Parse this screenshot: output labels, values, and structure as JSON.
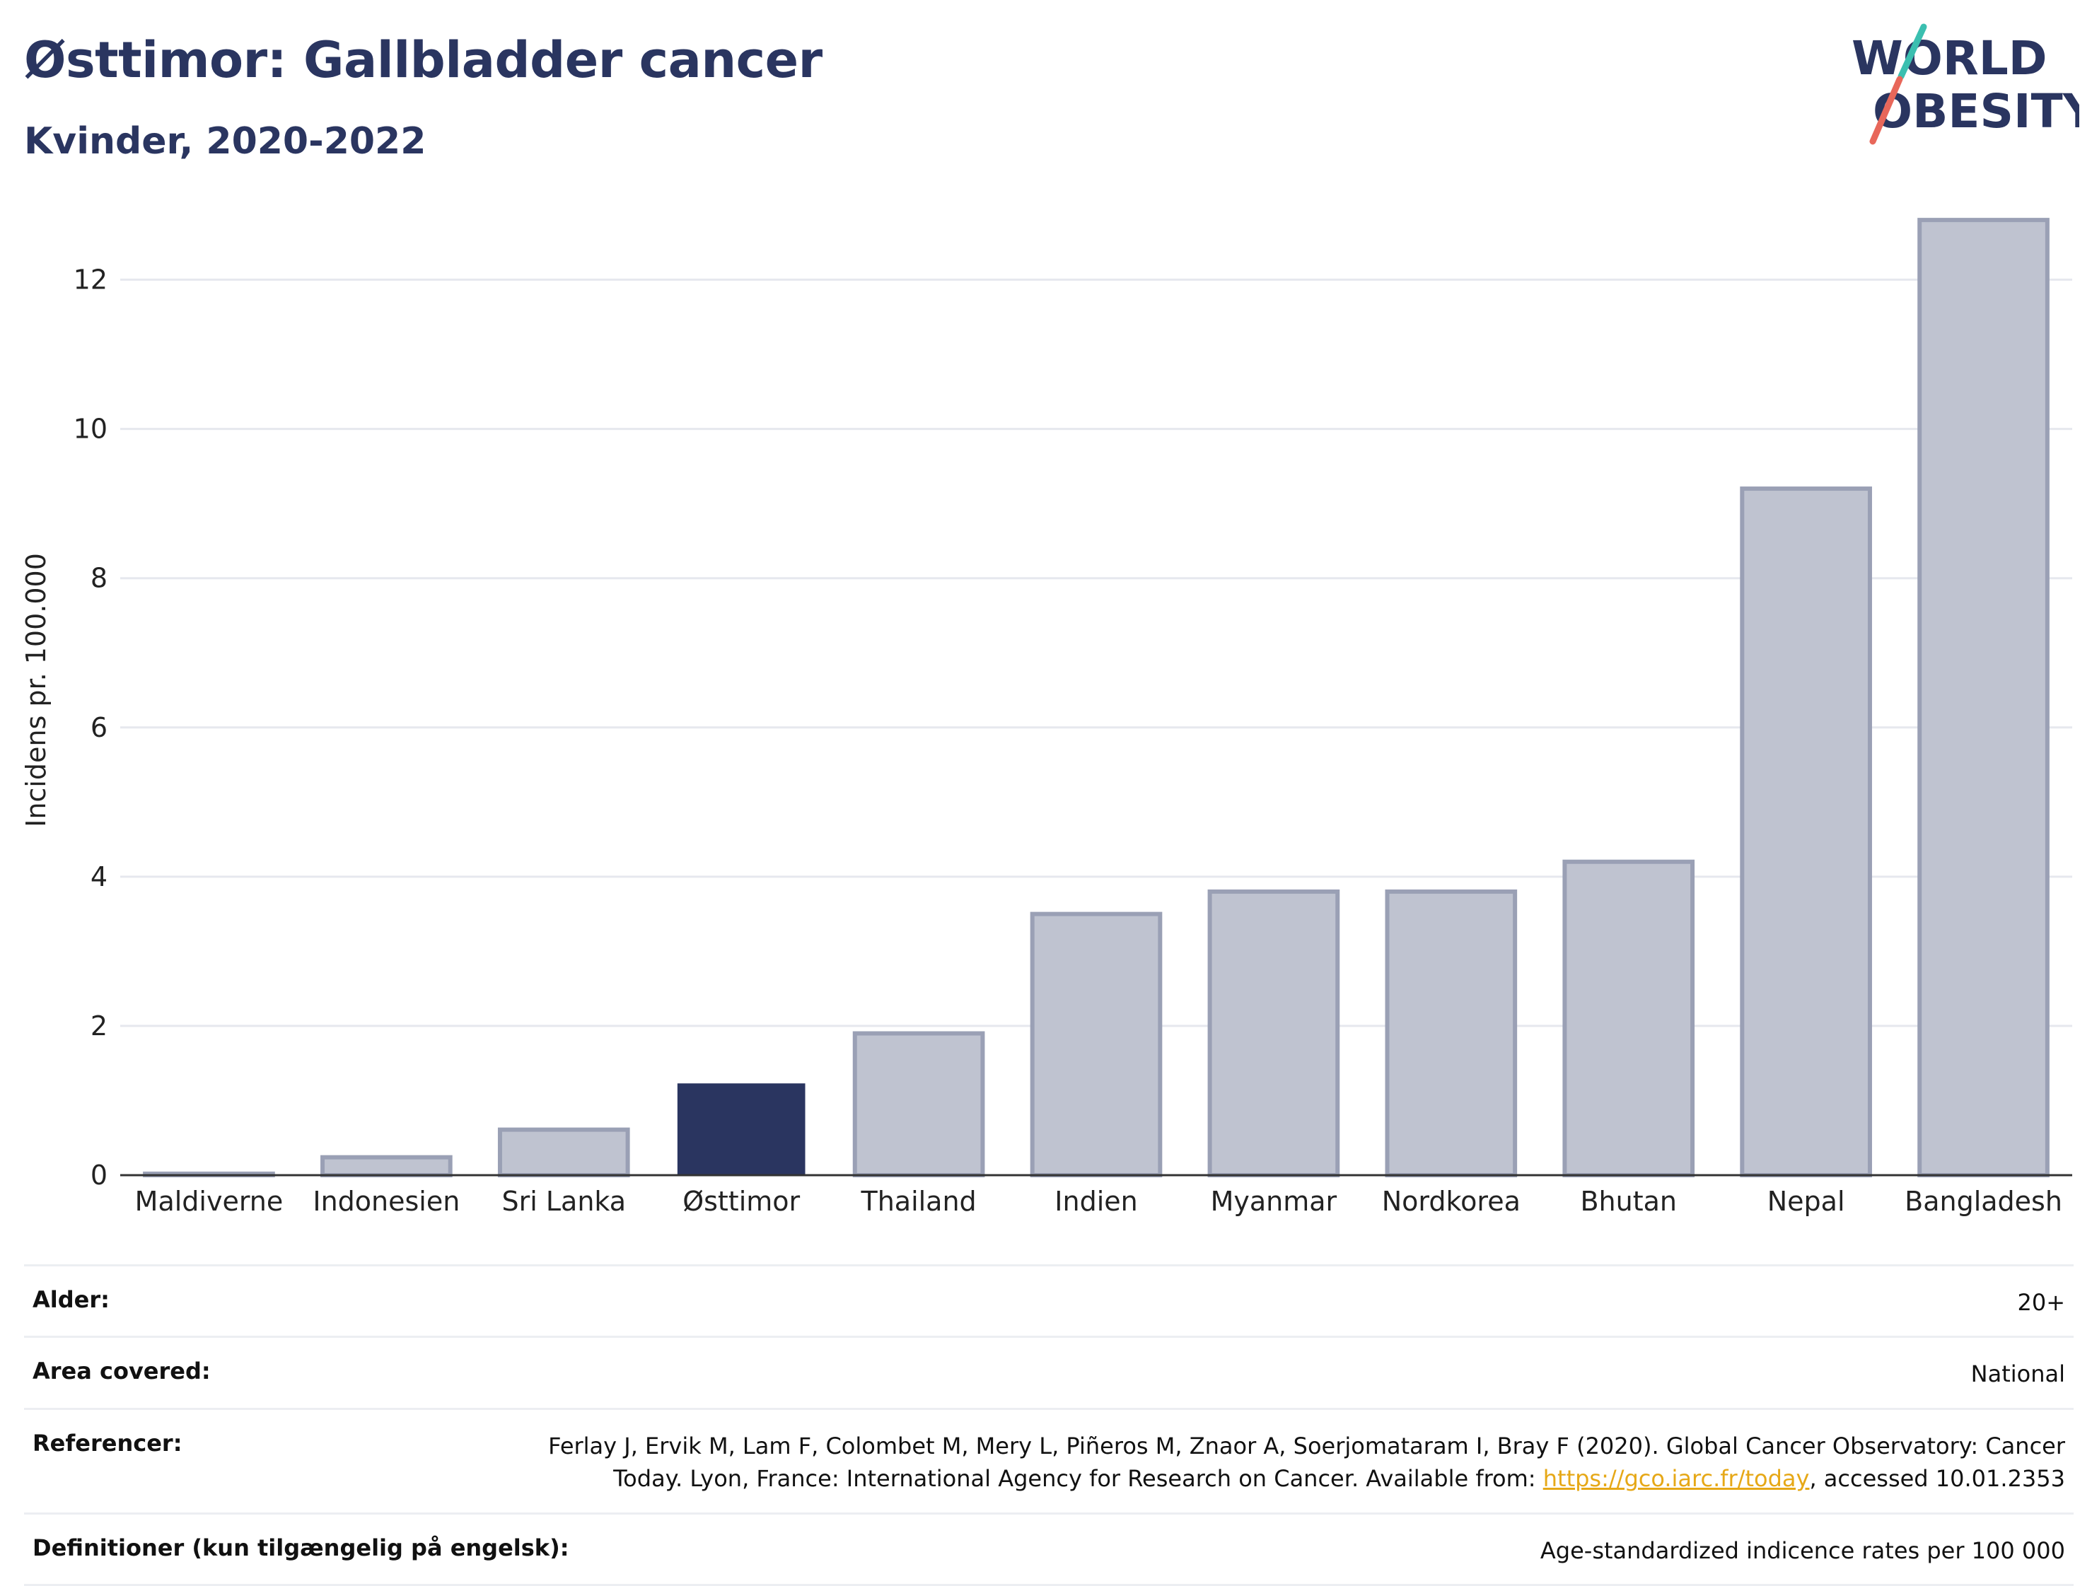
{
  "header": {
    "title": "Østtimor: Gallbladder cancer",
    "subtitle": "Kvinder, 2020-2022"
  },
  "logo": {
    "line1": "WORLD",
    "line2": "OBESITY",
    "colors": {
      "text": "#2a3560",
      "slash_teal": "#3bbfb0",
      "slash_red": "#e8675a"
    }
  },
  "chart_data": {
    "type": "bar",
    "categories": [
      "Maldiverne",
      "Indonesien",
      "Sri Lanka",
      "Østtimor",
      "Thailand",
      "Indien",
      "Myanmar",
      "Nordkorea",
      "Bhutan",
      "Nepal",
      "Bangladesh"
    ],
    "values": [
      0.02,
      0.24,
      0.61,
      1.23,
      1.9,
      3.5,
      3.8,
      3.8,
      4.2,
      9.2,
      12.8
    ],
    "highlight": "Østtimor",
    "ylabel": "Incidens pr. 100.000",
    "ylim": [
      0,
      13
    ],
    "yticks": [
      0,
      2,
      4,
      6,
      8,
      10,
      12
    ],
    "grid": true,
    "colors": {
      "bar": "#bfc3d0",
      "bar_edge": "#9aa0b5",
      "highlight": "#2a3560"
    }
  },
  "meta": {
    "rows": [
      {
        "key": "Alder:",
        "value": "20+"
      },
      {
        "key": "Area covered:",
        "value": "National"
      },
      {
        "key": "Referencer:",
        "value": "Ferlay J, Ervik M, Lam F, Colombet M, Mery L, Piñeros M, Znaor A, Soerjomataram I, Bray F (2020). Global Cancer Observatory: Cancer Today. Lyon, France: International Agency for Research on Cancer. Available from: ",
        "link": "https://gco.iarc.fr/today",
        "suffix": ", accessed 10.01.2353"
      },
      {
        "key": "Definitioner (kun tilgængelig på engelsk):",
        "value": "Age-standardized indicence rates per 100 000"
      }
    ]
  }
}
